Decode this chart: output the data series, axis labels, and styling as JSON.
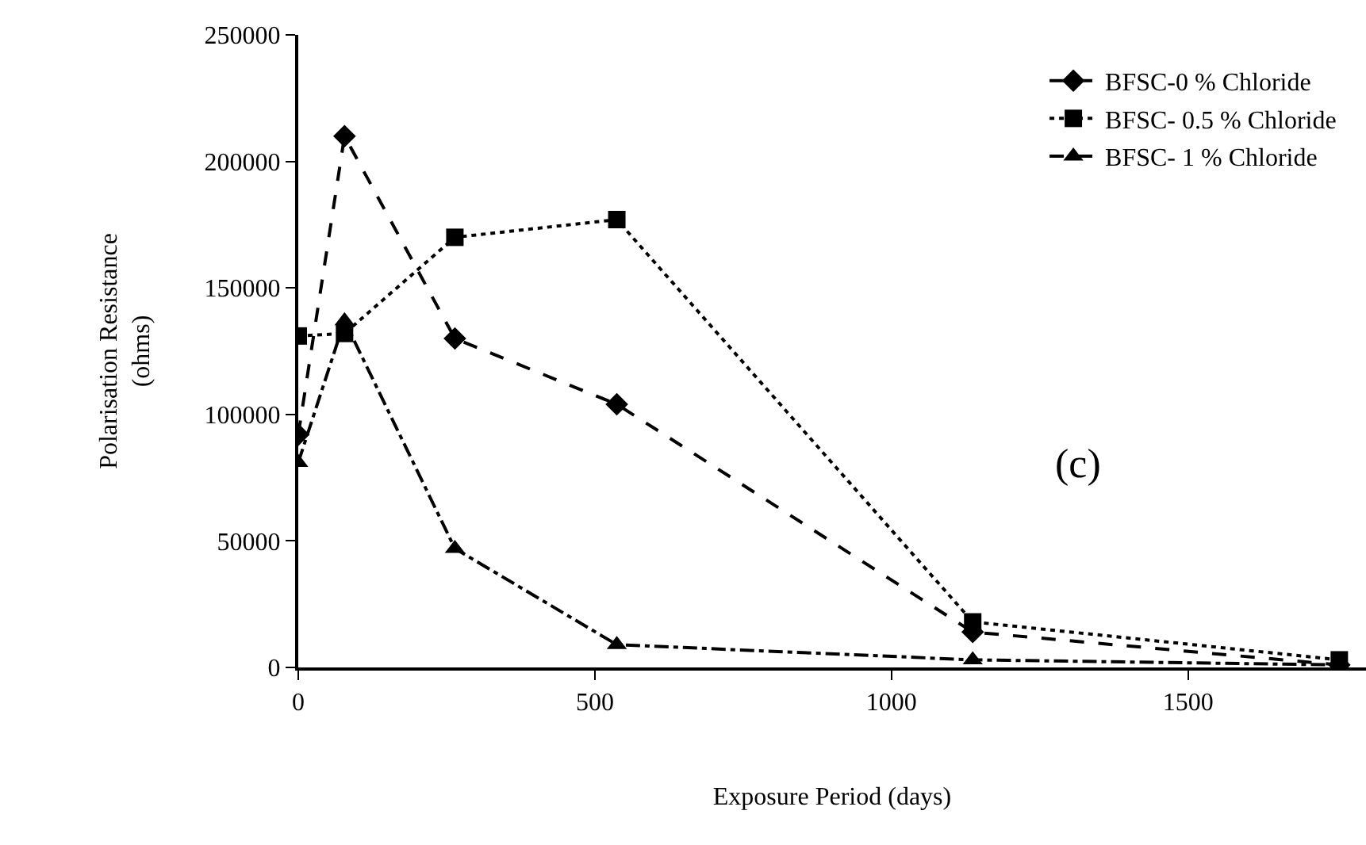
{
  "chart_data": {
    "type": "line",
    "xlabel": "Exposure Period (days)",
    "ylabel": "Polarisation Resistance\n(ohms)",
    "x": [
      0,
      78,
      264,
      537,
      1137,
      1755
    ],
    "series": [
      {
        "name": "BFSC-0 % Chloride",
        "color": "#000000",
        "marker": "diamond",
        "line_style": "dashed",
        "values": [
          92000,
          210000,
          130000,
          104000,
          14000,
          1000
        ]
      },
      {
        "name": "BFSC- 0.5 % Chloride",
        "color": "#000000",
        "marker": "square",
        "line_style": "dotted",
        "values": [
          131000,
          132000,
          170000,
          177000,
          18000,
          3000
        ]
      },
      {
        "name": "BFSC- 1 % Chloride",
        "color": "#000000",
        "marker": "triangle",
        "line_style": "dashdot",
        "values": [
          81000,
          137000,
          47000,
          9000,
          3000,
          1000
        ]
      }
    ],
    "xlim": [
      0,
      1800
    ],
    "xticks": [
      0,
      500,
      1000,
      1500
    ],
    "ylim": [
      0,
      250000
    ],
    "yticks": [
      0,
      50000,
      100000,
      150000,
      200000,
      250000
    ],
    "grid": false,
    "legend": "top right",
    "annotations": [
      "(c)"
    ]
  }
}
